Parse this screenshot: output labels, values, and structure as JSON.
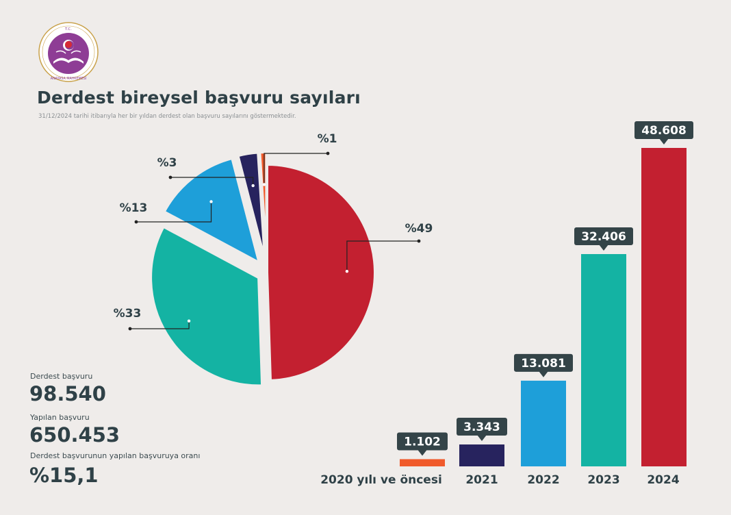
{
  "header": {
    "logo_text_top": "T.C.",
    "logo_text_bottom": "ANAYASA MAHKEMESİ",
    "title": "Derdest bireysel başvuru sayıları",
    "subtitle": "31/12/2024 tarihi itibarıyla her bir yıldan derdest olan başvuru sayılarını göstermektedir."
  },
  "stats": {
    "pending_label": "Derdest başvuru",
    "pending_value": "98.540",
    "filed_label": "Yapılan başvuru",
    "filed_value": "650.453",
    "ratio_label": "Derdest başvurunun yapılan başvuruya oranı",
    "ratio_value": "%15,1"
  },
  "colors": {
    "background": "#efecea",
    "orange": "#f05a2b",
    "navy": "#27235e",
    "blue": "#1e9fd9",
    "teal": "#14b3a3",
    "red": "#c32030",
    "label_box": "#344448",
    "logo_purple": "#8e3d95"
  },
  "chart_data": [
    {
      "type": "pie",
      "slices": [
        {
          "label": "%49",
          "value": 49,
          "color": "#c32030"
        },
        {
          "label": "%33",
          "value": 33,
          "color": "#14b3a3"
        },
        {
          "label": "%13",
          "value": 13,
          "color": "#1e9fd9"
        },
        {
          "label": "%3",
          "value": 3,
          "color": "#27235e"
        },
        {
          "label": "%1",
          "value": 1,
          "color": "#f05a2b"
        }
      ]
    },
    {
      "type": "bar",
      "categories": [
        "2020 yılı ve öncesi",
        "2021",
        "2022",
        "2023",
        "2024"
      ],
      "values": [
        1102,
        3343,
        13081,
        32406,
        48608
      ],
      "value_labels": [
        "1.102",
        "3.343",
        "13.081",
        "32.406",
        "48.608"
      ],
      "colors": [
        "#f05a2b",
        "#27235e",
        "#1e9fd9",
        "#14b3a3",
        "#c32030"
      ],
      "ylim": [
        0,
        48608
      ]
    }
  ]
}
